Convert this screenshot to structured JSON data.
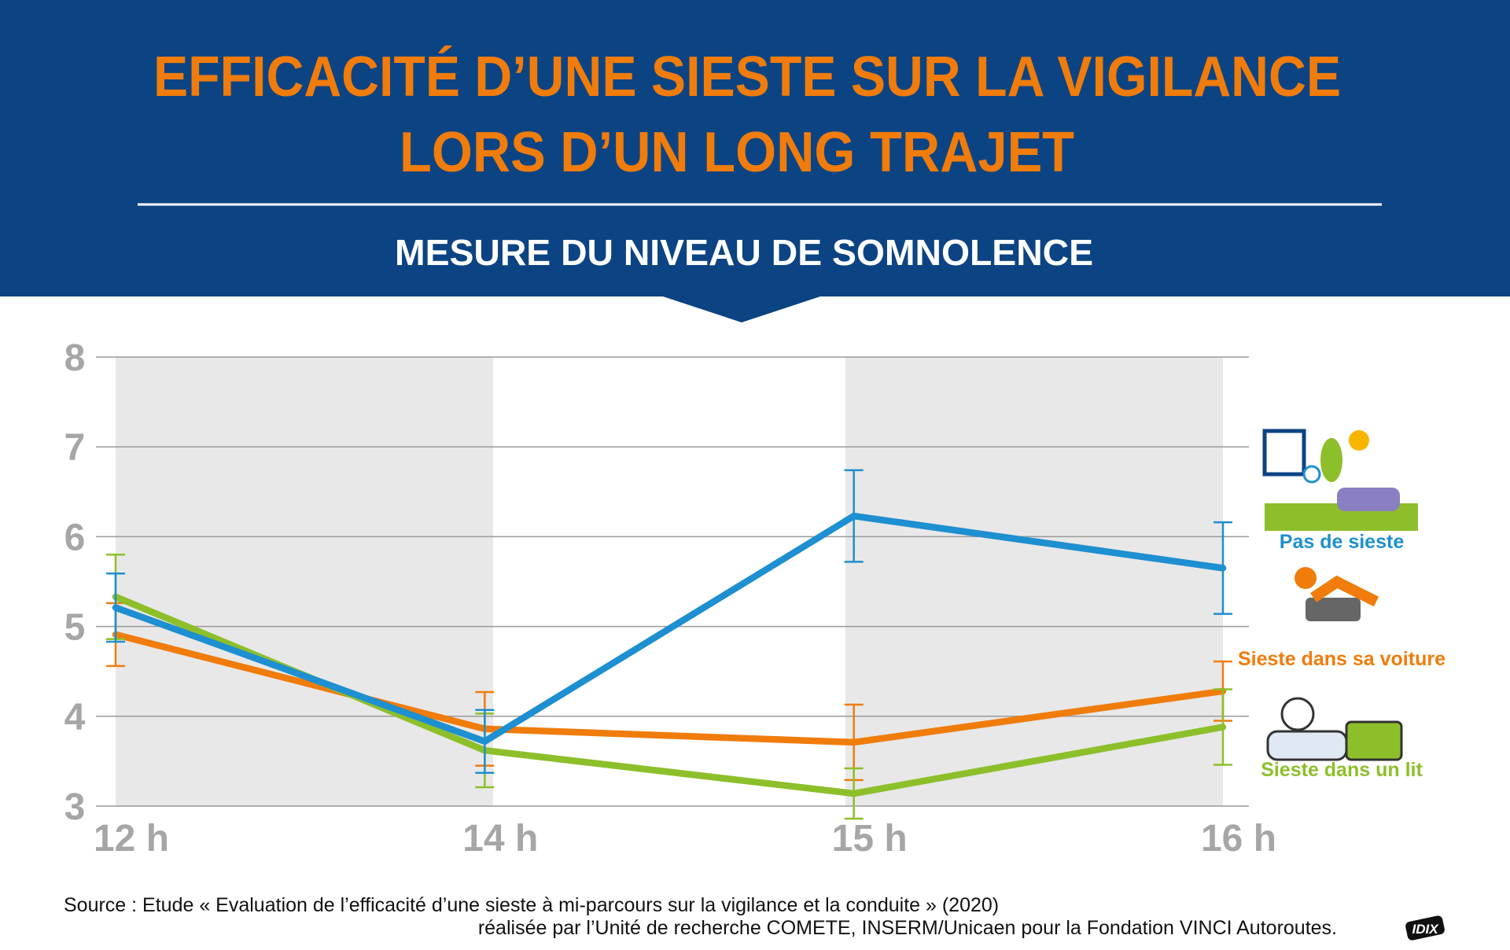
{
  "chart_data": {
    "type": "line",
    "title": [
      "EFFICACITÉ D’UNE SIESTE SUR LA VIGILANCE",
      "LORS D’UN LONG TRAJET"
    ],
    "subtitle": "MESURE DU NIVEAU DE SOMNOLENCE",
    "categories": [
      "12 h",
      "14 h",
      "15 h",
      "16 h"
    ],
    "ylim": [
      3,
      8
    ],
    "yticks": [
      3,
      4,
      5,
      6,
      7,
      8
    ],
    "grid": true,
    "legend": "right",
    "series": [
      {
        "name": "Pas de sieste",
        "color": "#1e8fd0",
        "values": [
          5.21,
          3.72,
          6.23,
          5.65
        ],
        "errors": [
          0.38,
          0.35,
          0.51,
          0.51
        ]
      },
      {
        "name": "Sieste dans sa voiture",
        "color": "#f07c0c",
        "values": [
          4.91,
          3.86,
          3.71,
          4.28
        ],
        "errors": [
          0.35,
          0.41,
          0.42,
          0.33
        ]
      },
      {
        "name": "Sieste dans un lit",
        "color": "#8dbf2a",
        "values": [
          5.33,
          3.62,
          3.14,
          3.88
        ],
        "errors": [
          0.47,
          0.41,
          0.28,
          0.42
        ]
      }
    ],
    "source": [
      "Source : Etude « Evaluation de l’efficacité d’une sieste à mi-parcours sur la vigilance et la conduite » (2020)",
      "réalisée par l’Unité de recherche COMETE, INSERM/Unicaen pour la Fondation VINCI Autoroutes."
    ],
    "logo": "IDIX"
  }
}
